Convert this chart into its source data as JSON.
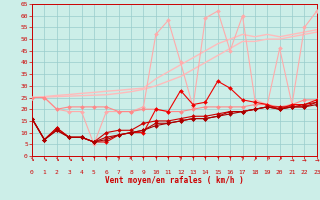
{
  "bg_color": "#cceee8",
  "grid_color": "#99cccc",
  "xlabel": "Vent moyen/en rafales ( km/h )",
  "xlim": [
    0,
    23
  ],
  "ylim": [
    0,
    65
  ],
  "yticks": [
    0,
    5,
    10,
    15,
    20,
    25,
    30,
    35,
    40,
    45,
    50,
    55,
    60,
    65
  ],
  "xticks": [
    0,
    1,
    2,
    3,
    4,
    5,
    6,
    7,
    8,
    9,
    10,
    11,
    12,
    13,
    14,
    15,
    16,
    17,
    18,
    19,
    20,
    21,
    22,
    23
  ],
  "series": [
    {
      "color": "#ffbbbb",
      "lw": 1.0,
      "marker": null,
      "y": [
        25,
        25.4,
        25.9,
        26.3,
        26.8,
        27.2,
        27.7,
        28.1,
        28.6,
        29.0,
        33,
        36,
        39,
        42,
        45,
        48,
        50,
        52,
        51,
        52,
        51,
        52,
        53,
        54
      ]
    },
    {
      "color": "#ffbbbb",
      "lw": 1.0,
      "marker": null,
      "y": [
        25,
        25.2,
        25.4,
        25.6,
        25.8,
        26.0,
        26.2,
        26.8,
        27.5,
        28.5,
        30,
        32,
        34,
        37,
        40,
        43,
        46,
        49,
        49,
        50,
        50,
        51,
        52,
        53
      ]
    },
    {
      "color": "#ffaaaa",
      "lw": 0.8,
      "marker": "D",
      "ms": 2,
      "y": [
        25,
        25,
        20,
        19,
        19,
        5,
        19,
        19,
        19,
        21,
        52,
        58,
        40,
        21,
        59,
        62,
        45,
        60,
        24,
        22,
        46,
        22,
        55,
        62
      ]
    },
    {
      "color": "#ff8888",
      "lw": 0.8,
      "marker": "D",
      "ms": 2,
      "y": [
        25,
        25,
        20,
        21,
        21,
        21,
        21,
        19,
        19,
        20,
        20,
        19,
        19,
        20,
        21,
        21,
        21,
        21,
        22,
        22,
        21,
        22,
        24,
        24
      ]
    },
    {
      "color": "#ee0000",
      "lw": 0.8,
      "marker": "D",
      "ms": 2,
      "y": [
        16,
        7,
        12,
        8,
        8,
        6,
        6,
        9,
        10,
        10,
        20,
        19,
        28,
        22,
        23,
        32,
        29,
        24,
        23,
        22,
        20,
        22,
        22,
        24
      ]
    },
    {
      "color": "#cc0000",
      "lw": 0.8,
      "marker": "D",
      "ms": 2,
      "y": [
        16,
        7,
        12,
        8,
        8,
        6,
        10,
        11,
        11,
        14,
        15,
        15,
        16,
        17,
        17,
        18,
        19,
        19,
        20,
        21,
        21,
        21,
        22,
        23
      ]
    },
    {
      "color": "#bb0000",
      "lw": 0.8,
      "marker": "D",
      "ms": 2,
      "y": [
        16,
        7,
        11,
        8,
        8,
        6,
        8,
        9,
        10,
        11,
        14,
        14,
        15,
        16,
        16,
        17,
        19,
        19,
        20,
        21,
        20,
        21,
        21,
        23
      ]
    },
    {
      "color": "#aa0000",
      "lw": 0.8,
      "marker": "D",
      "ms": 2,
      "y": [
        16,
        7,
        11,
        8,
        8,
        6,
        7,
        9,
        10,
        11,
        13,
        14,
        15,
        16,
        16,
        17,
        18,
        19,
        20,
        21,
        20,
        21,
        21,
        22
      ]
    }
  ]
}
